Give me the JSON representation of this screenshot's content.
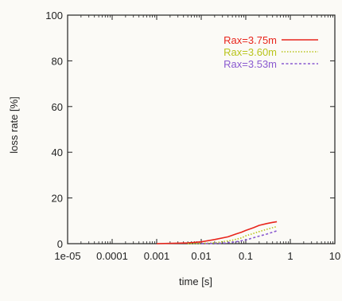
{
  "chart_data": {
    "type": "line",
    "title": "",
    "xlabel": "time [s]",
    "ylabel": "loss rate [%]",
    "x_scale": "log",
    "xlim": [
      1e-05,
      10
    ],
    "ylim": [
      0,
      100
    ],
    "x_ticks": [
      {
        "value": 1e-05,
        "label": "1e-05"
      },
      {
        "value": 0.0001,
        "label": "0.0001"
      },
      {
        "value": 0.001,
        "label": "0.001"
      },
      {
        "value": 0.01,
        "label": "0.01"
      },
      {
        "value": 0.1,
        "label": "0.1"
      },
      {
        "value": 1,
        "label": "1"
      },
      {
        "value": 10,
        "label": "10"
      }
    ],
    "y_ticks": [
      {
        "value": 0,
        "label": "0"
      },
      {
        "value": 20,
        "label": "20"
      },
      {
        "value": 40,
        "label": "40"
      },
      {
        "value": 60,
        "label": "60"
      },
      {
        "value": 80,
        "label": "80"
      },
      {
        "value": 100,
        "label": "100"
      }
    ],
    "grid": false,
    "legend_position": "top-right",
    "series": [
      {
        "name": "Rax=3.75m",
        "color": "#e8251c",
        "dash": "solid",
        "x": [
          0.001,
          0.005,
          0.01,
          0.02,
          0.04,
          0.06,
          0.08,
          0.1,
          0.15,
          0.2,
          0.3,
          0.4,
          0.5
        ],
        "y": [
          0,
          0.3,
          0.8,
          1.8,
          3,
          4.2,
          5,
          5.8,
          7,
          8,
          8.8,
          9.3,
          9.6
        ]
      },
      {
        "name": "Rax=3.60m",
        "color": "#b9c41c",
        "dash": "dotted",
        "x": [
          0.005,
          0.01,
          0.02,
          0.05,
          0.08,
          0.1,
          0.15,
          0.2,
          0.3,
          0.4,
          0.5
        ],
        "y": [
          0,
          0.1,
          0.4,
          1.5,
          2.5,
          3.4,
          4.5,
          5.3,
          6.3,
          7,
          7.5
        ]
      },
      {
        "name": "Rax=3.53m",
        "color": "#8a5ad0",
        "dash": "dashed",
        "x": [
          0.01,
          0.03,
          0.06,
          0.1,
          0.15,
          0.2,
          0.3,
          0.4,
          0.5
        ],
        "y": [
          0,
          0.2,
          0.8,
          1.6,
          2.6,
          3.3,
          4.2,
          5,
          5.6
        ]
      }
    ]
  }
}
